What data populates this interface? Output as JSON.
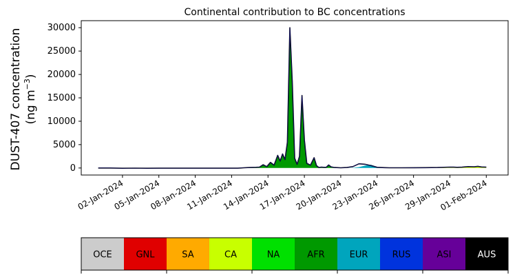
{
  "chart_data": {
    "type": "area",
    "title": "Continental contribution to BC concentrations",
    "ylabel_line1": "DUST-407 concentration",
    "ylabel_line2": "(ng m",
    "ylabel_sup": "−3",
    "ylabel_close": ")",
    "xlabel": "",
    "ylim": [
      -1500,
      31500
    ],
    "xlim": [
      -2.4,
      32.8
    ],
    "yticks": [
      0,
      5000,
      10000,
      15000,
      20000,
      25000,
      30000
    ],
    "xtick_labels": [
      "02-Jan-2024",
      "05-Jan-2024",
      "08-Jan-2024",
      "11-Jan-2024",
      "14-Jan-2024",
      "17-Jan-2024",
      "20-Jan-2024",
      "23-Jan-2024",
      "26-Jan-2024",
      "29-Jan-2024",
      "01-Feb-2024"
    ],
    "xtick_days": [
      1,
      4,
      7,
      10,
      13,
      16,
      19,
      22,
      25,
      28,
      31
    ],
    "grid": false,
    "x_days": [
      -1,
      0,
      1,
      2,
      3,
      4,
      5,
      6,
      7,
      8,
      9,
      10,
      10.5,
      11,
      11.5,
      12,
      12.3,
      12.6,
      12.9,
      13.2,
      13.5,
      13.8,
      14.0,
      14.2,
      14.4,
      14.6,
      14.8,
      15.0,
      15.2,
      15.4,
      15.6,
      15.8,
      16.0,
      16.2,
      16.5,
      16.8,
      17.0,
      17.2,
      17.4,
      17.6,
      17.8,
      18.0,
      18.2,
      18.5,
      19.0,
      19.5,
      20.0,
      20.5,
      21.0,
      21.5,
      21.8,
      22.0,
      22.3,
      22.6,
      23,
      24,
      25,
      26,
      27,
      28,
      28.3,
      28.6,
      29,
      29.5,
      30,
      30.3,
      30.6,
      31
    ],
    "series": [
      {
        "name": "AFR",
        "color": "#009900",
        "values": [
          0,
          0,
          0,
          0,
          0,
          0,
          0,
          0,
          0,
          0,
          0,
          0,
          0,
          50,
          100,
          150,
          200,
          700,
          300,
          1200,
          600,
          2500,
          1500,
          2800,
          1800,
          5000,
          29000,
          18000,
          2000,
          800,
          2500,
          14500,
          6000,
          1000,
          600,
          2000,
          500,
          100,
          200,
          100,
          100,
          500,
          200,
          100,
          50,
          20,
          20,
          20,
          20,
          20,
          20,
          20,
          20,
          20,
          20,
          20,
          20,
          20,
          20,
          20,
          20,
          20,
          20,
          20,
          20,
          20,
          20,
          20
        ]
      },
      {
        "name": "EUR",
        "color": "#00a5bd",
        "values": [
          0,
          0,
          0,
          0,
          0,
          0,
          0,
          0,
          0,
          0,
          0,
          0,
          0,
          0,
          0,
          0,
          0,
          0,
          0,
          0,
          0,
          0,
          0,
          0,
          0,
          0,
          0,
          0,
          0,
          0,
          0,
          0,
          0,
          0,
          0,
          0,
          0,
          0,
          0,
          0,
          0,
          0,
          0,
          0,
          0,
          0,
          50,
          200,
          500,
          700,
          400,
          200,
          100,
          50,
          20,
          10,
          10,
          10,
          10,
          10,
          10,
          10,
          10,
          10,
          10,
          10,
          10,
          10
        ]
      },
      {
        "name": "CA",
        "color": "#c8ff00",
        "values": [
          0,
          0,
          0,
          0,
          0,
          0,
          0,
          0,
          0,
          0,
          0,
          0,
          0,
          0,
          0,
          0,
          0,
          0,
          0,
          0,
          0,
          0,
          0,
          0,
          0,
          0,
          0,
          0,
          0,
          0,
          0,
          0,
          0,
          0,
          0,
          0,
          0,
          0,
          0,
          0,
          0,
          0,
          0,
          0,
          0,
          0,
          0,
          0,
          0,
          0,
          0,
          0,
          0,
          0,
          0,
          0,
          0,
          0,
          0,
          100,
          80,
          100,
          150,
          200,
          250,
          300,
          200,
          150
        ]
      }
    ],
    "total": [
      0,
      0,
      -50,
      -30,
      -50,
      -40,
      -40,
      -40,
      -40,
      -40,
      -40,
      -40,
      -40,
      50,
      100,
      150,
      200,
      700,
      300,
      1200,
      600,
      2700,
      1500,
      3000,
      1800,
      5500,
      30000,
      18500,
      2100,
      800,
      2500,
      15500,
      6000,
      1000,
      600,
      2200,
      500,
      100,
      200,
      150,
      150,
      650,
      250,
      100,
      50,
      100,
      300,
      900,
      800,
      500,
      300,
      150,
      100,
      70,
      50,
      50,
      60,
      80,
      100,
      200,
      180,
      150,
      180,
      300,
      250,
      350,
      230,
      180
    ],
    "legend_colorbar": {
      "labels": [
        "OCE",
        "GNL",
        "SA",
        "CA",
        "NA",
        "AFR",
        "EUR",
        "RUS",
        "ASI",
        "AUS"
      ],
      "colors": [
        "#cccccc",
        "#e00000",
        "#ffaa00",
        "#c8ff00",
        "#00e000",
        "#009900",
        "#00a5bd",
        "#0033dd",
        "#660099",
        "#000000"
      ],
      "label_colors": [
        "#000000",
        "#000000",
        "#000000",
        "#000000",
        "#000000",
        "#000000",
        "#000000",
        "#000000",
        "#000000",
        "#ffffff"
      ]
    }
  }
}
